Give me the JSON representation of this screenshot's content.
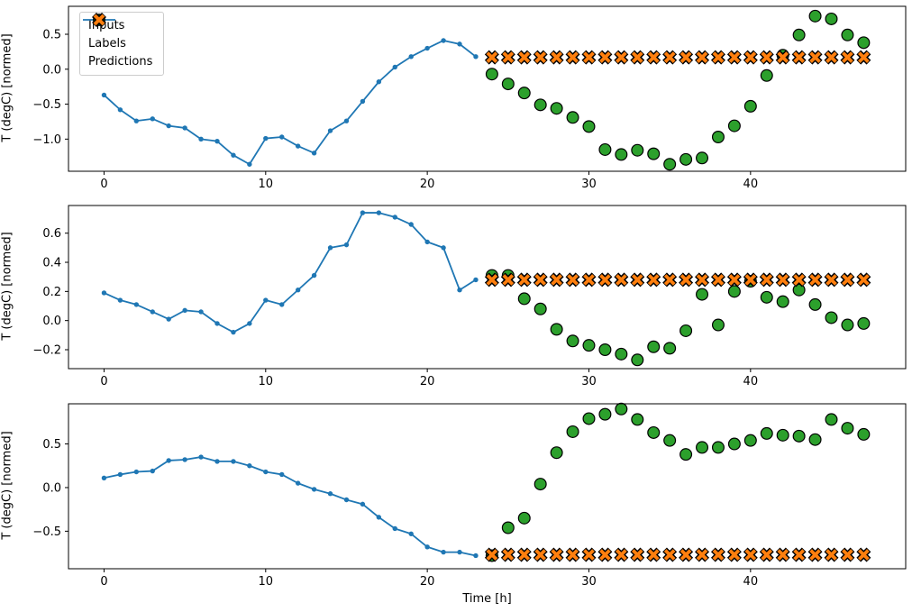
{
  "figure": {
    "xlabel": "Time [h]",
    "ylabel": "T (degC) [normed]",
    "legend": [
      {
        "label": "Inputs",
        "marker": "line-dot-icon"
      },
      {
        "label": "Labels",
        "marker": "circle-icon"
      },
      {
        "label": "Predictions",
        "marker": "x-icon"
      }
    ],
    "colors": {
      "inputs": "#1f77b4",
      "labels": "#2ca02c",
      "predictions": "#ff7f0e",
      "marker_edge": "#000000",
      "axis": "#000000",
      "legend_border": "#cccccc"
    }
  },
  "chart_data": [
    {
      "type": "line",
      "title": "",
      "xlabel": "",
      "ylabel": "T (degC) [normed]",
      "x_ticks": [
        0,
        10,
        20,
        30,
        40
      ],
      "y_ticks": [
        0.5,
        0.0,
        -0.5,
        -1.0
      ],
      "xlim": [
        -2.2,
        49.6
      ],
      "ylim": [
        -1.46,
        0.9
      ],
      "grid": false,
      "legend_position": "upper left",
      "series": [
        {
          "name": "Inputs",
          "type": "line",
          "marker": "dot",
          "color": "#1f77b4",
          "x": [
            0,
            1,
            2,
            3,
            4,
            5,
            6,
            7,
            8,
            9,
            10,
            11,
            12,
            13,
            14,
            15,
            16,
            17,
            18,
            19,
            20,
            21,
            22,
            23
          ],
          "y": [
            -0.37,
            -0.58,
            -0.74,
            -0.71,
            -0.81,
            -0.84,
            -1.0,
            -1.03,
            -1.23,
            -1.36,
            -0.99,
            -0.97,
            -1.1,
            -1.2,
            -0.88,
            -0.74,
            -0.46,
            -0.18,
            0.03,
            0.18,
            0.3,
            0.41,
            0.36,
            0.18
          ]
        },
        {
          "name": "Labels",
          "type": "scatter",
          "marker": "circle",
          "color": "#2ca02c",
          "x": [
            24,
            25,
            26,
            27,
            28,
            29,
            30,
            31,
            32,
            33,
            34,
            35,
            36,
            37,
            38,
            39,
            40,
            41,
            42,
            43,
            44,
            45,
            46,
            47
          ],
          "y": [
            -0.07,
            -0.21,
            -0.34,
            -0.51,
            -0.56,
            -0.69,
            -0.82,
            -1.15,
            -1.22,
            -1.16,
            -1.21,
            -1.36,
            -1.29,
            -1.27,
            -0.97,
            -0.81,
            -0.53,
            -0.09,
            0.2,
            0.49,
            0.76,
            0.72,
            0.49,
            0.38
          ]
        },
        {
          "name": "Predictions",
          "type": "scatter",
          "marker": "X",
          "color": "#ff7f0e",
          "x": [
            24,
            25,
            26,
            27,
            28,
            29,
            30,
            31,
            32,
            33,
            34,
            35,
            36,
            37,
            38,
            39,
            40,
            41,
            42,
            43,
            44,
            45,
            46,
            47
          ],
          "y": [
            0.17,
            0.17,
            0.17,
            0.17,
            0.17,
            0.17,
            0.17,
            0.17,
            0.17,
            0.17,
            0.17,
            0.17,
            0.17,
            0.17,
            0.17,
            0.17,
            0.17,
            0.17,
            0.17,
            0.17,
            0.17,
            0.17,
            0.17,
            0.17
          ]
        }
      ]
    },
    {
      "type": "line",
      "title": "",
      "xlabel": "",
      "ylabel": "T (degC) [normed]",
      "x_ticks": [
        0,
        10,
        20,
        30,
        40
      ],
      "y_ticks": [
        0.6,
        0.4,
        0.2,
        0.0,
        -0.2
      ],
      "xlim": [
        -2.2,
        49.6
      ],
      "ylim": [
        -0.33,
        0.79
      ],
      "grid": false,
      "series": [
        {
          "name": "Inputs",
          "type": "line",
          "marker": "dot",
          "color": "#1f77b4",
          "x": [
            0,
            1,
            2,
            3,
            4,
            5,
            6,
            7,
            8,
            9,
            10,
            11,
            12,
            13,
            14,
            15,
            16,
            17,
            18,
            19,
            20,
            21,
            22,
            23
          ],
          "y": [
            0.19,
            0.14,
            0.11,
            0.06,
            0.01,
            0.07,
            0.06,
            -0.02,
            -0.08,
            -0.02,
            0.14,
            0.11,
            0.21,
            0.31,
            0.5,
            0.52,
            0.74,
            0.74,
            0.71,
            0.66,
            0.54,
            0.5,
            0.21,
            0.28
          ]
        },
        {
          "name": "Labels",
          "type": "scatter",
          "marker": "circle",
          "color": "#2ca02c",
          "x": [
            24,
            25,
            26,
            27,
            28,
            29,
            30,
            31,
            32,
            33,
            34,
            35,
            36,
            37,
            38,
            39,
            40,
            41,
            42,
            43,
            44,
            45,
            46,
            47
          ],
          "y": [
            0.31,
            0.31,
            0.15,
            0.08,
            -0.06,
            -0.14,
            -0.17,
            -0.2,
            -0.23,
            -0.27,
            -0.18,
            -0.19,
            -0.07,
            0.18,
            -0.03,
            0.2,
            0.27,
            0.16,
            0.13,
            0.21,
            0.11,
            0.02,
            -0.03,
            -0.02
          ]
        },
        {
          "name": "Predictions",
          "type": "scatter",
          "marker": "X",
          "color": "#ff7f0e",
          "x": [
            24,
            25,
            26,
            27,
            28,
            29,
            30,
            31,
            32,
            33,
            34,
            35,
            36,
            37,
            38,
            39,
            40,
            41,
            42,
            43,
            44,
            45,
            46,
            47
          ],
          "y": [
            0.28,
            0.28,
            0.28,
            0.28,
            0.28,
            0.28,
            0.28,
            0.28,
            0.28,
            0.28,
            0.28,
            0.28,
            0.28,
            0.28,
            0.28,
            0.28,
            0.28,
            0.28,
            0.28,
            0.28,
            0.28,
            0.28,
            0.28,
            0.28
          ]
        }
      ]
    },
    {
      "type": "line",
      "title": "",
      "xlabel": "Time [h]",
      "ylabel": "T (degC) [normed]",
      "x_ticks": [
        0,
        10,
        20,
        30,
        40
      ],
      "y_ticks": [
        0.5,
        0.0,
        -0.5
      ],
      "xlim": [
        -2.2,
        49.6
      ],
      "ylim": [
        -0.93,
        0.96
      ],
      "grid": false,
      "series": [
        {
          "name": "Inputs",
          "type": "line",
          "marker": "dot",
          "color": "#1f77b4",
          "x": [
            0,
            1,
            2,
            3,
            4,
            5,
            6,
            7,
            8,
            9,
            10,
            11,
            12,
            13,
            14,
            15,
            16,
            17,
            18,
            19,
            20,
            21,
            22,
            23
          ],
          "y": [
            0.11,
            0.15,
            0.18,
            0.19,
            0.31,
            0.32,
            0.35,
            0.3,
            0.3,
            0.25,
            0.18,
            0.15,
            0.05,
            -0.02,
            -0.07,
            -0.14,
            -0.19,
            -0.34,
            -0.47,
            -0.53,
            -0.68,
            -0.74,
            -0.74,
            -0.78
          ]
        },
        {
          "name": "Labels",
          "type": "scatter",
          "marker": "circle",
          "color": "#2ca02c",
          "x": [
            24,
            25,
            26,
            27,
            28,
            29,
            30,
            31,
            32,
            33,
            34,
            35,
            36,
            37,
            38,
            39,
            40,
            41,
            42,
            43,
            44,
            45,
            46,
            47
          ],
          "y": [
            -0.78,
            -0.46,
            -0.35,
            0.04,
            0.4,
            0.64,
            0.79,
            0.84,
            0.9,
            0.78,
            0.63,
            0.54,
            0.38,
            0.46,
            0.46,
            0.5,
            0.54,
            0.62,
            0.6,
            0.59,
            0.55,
            0.78,
            0.68,
            0.61
          ]
        },
        {
          "name": "Predictions",
          "type": "scatter",
          "marker": "X",
          "color": "#ff7f0e",
          "x": [
            24,
            25,
            26,
            27,
            28,
            29,
            30,
            31,
            32,
            33,
            34,
            35,
            36,
            37,
            38,
            39,
            40,
            41,
            42,
            43,
            44,
            45,
            46,
            47
          ],
          "y": [
            -0.77,
            -0.77,
            -0.77,
            -0.77,
            -0.77,
            -0.77,
            -0.77,
            -0.77,
            -0.77,
            -0.77,
            -0.77,
            -0.77,
            -0.77,
            -0.77,
            -0.77,
            -0.77,
            -0.77,
            -0.77,
            -0.77,
            -0.77,
            -0.77,
            -0.77,
            -0.77,
            -0.77
          ]
        }
      ]
    }
  ]
}
